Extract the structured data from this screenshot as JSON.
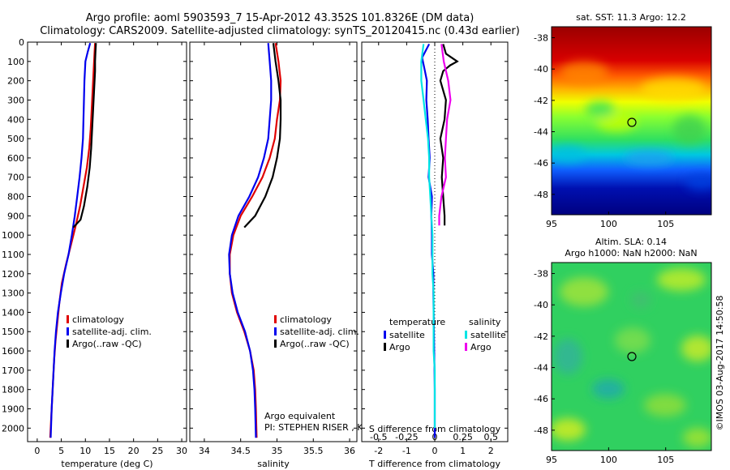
{
  "title_line1": "Argo profile: aoml 5903593_7 15-Apr-2012 43.352S 101.8326E (DM data)",
  "title_line2": "Climatology: CARS2009. Satellite-adjusted climatology: synTS_20120415.nc (0.43d earlier)",
  "watermark": "©IMOS 03-Aug-2017 14:50:58",
  "annotation_line1": "Argo equivalent",
  "annotation_line2": "PI: STEPHEN RISER , KENNETH JOHNSON",
  "colors": {
    "climatology": "#e00000",
    "satellite": "#0000ee",
    "argo": "#000000",
    "cyan": "#00e5e5",
    "magenta": "#ee00ee"
  },
  "chart_data": [
    {
      "id": "temperature",
      "type": "line",
      "xlabel": "temperature (deg C)",
      "xlim": [
        -2,
        31
      ],
      "xticks": [
        0,
        5,
        10,
        15,
        20,
        25,
        30
      ],
      "ylim": [
        0,
        2070
      ],
      "yticks": [
        0,
        100,
        200,
        300,
        400,
        500,
        600,
        700,
        800,
        900,
        1000,
        1100,
        1200,
        1300,
        1400,
        1500,
        1600,
        1700,
        1800,
        1900,
        2000
      ],
      "legend": [
        "climatology",
        "satellite-adj. clim.",
        "Argo(..raw -QC)"
      ],
      "series": [
        {
          "name": "climatology",
          "color": "#e00000",
          "points": [
            [
              12,
              5
            ],
            [
              11.9,
              50
            ],
            [
              11.8,
              100
            ],
            [
              11.7,
              150
            ],
            [
              11.5,
              250
            ],
            [
              11.3,
              350
            ],
            [
              11.1,
              450
            ],
            [
              10.8,
              550
            ],
            [
              10.3,
              650
            ],
            [
              9.6,
              750
            ],
            [
              8.9,
              850
            ],
            [
              8,
              950
            ],
            [
              7,
              1050
            ],
            [
              6,
              1150
            ],
            [
              5.1,
              1250
            ],
            [
              4.6,
              1350
            ],
            [
              4.2,
              1450
            ],
            [
              3.8,
              1550
            ],
            [
              3.5,
              1650
            ],
            [
              3.2,
              1800
            ],
            [
              2.9,
              1950
            ],
            [
              2.7,
              2050
            ]
          ]
        },
        {
          "name": "satellite-adj. clim.",
          "color": "#0000ee",
          "points": [
            [
              11,
              5
            ],
            [
              10.5,
              50
            ],
            [
              10,
              100
            ],
            [
              9.8,
              200
            ],
            [
              9.7,
              300
            ],
            [
              9.6,
              400
            ],
            [
              9.5,
              500
            ],
            [
              9.2,
              600
            ],
            [
              8.8,
              700
            ],
            [
              8.3,
              800
            ],
            [
              7.8,
              900
            ],
            [
              7.2,
              1000
            ],
            [
              6.5,
              1100
            ],
            [
              5.6,
              1200
            ],
            [
              4.9,
              1300
            ],
            [
              4.3,
              1400
            ],
            [
              3.9,
              1500
            ],
            [
              3.6,
              1600
            ],
            [
              3.3,
              1750
            ],
            [
              3,
              1900
            ],
            [
              2.8,
              2050
            ]
          ]
        },
        {
          "name": "Argo(..raw -QC)",
          "color": "#000000",
          "points": [
            [
              12.2,
              5
            ],
            [
              12.1,
              50
            ],
            [
              12,
              100
            ],
            [
              12,
              150
            ],
            [
              11.8,
              250
            ],
            [
              11.6,
              350
            ],
            [
              11.4,
              450
            ],
            [
              11.2,
              550
            ],
            [
              10.9,
              650
            ],
            [
              10.4,
              750
            ],
            [
              9.7,
              850
            ],
            [
              9,
              920
            ],
            [
              7.5,
              960
            ]
          ]
        }
      ]
    },
    {
      "id": "salinity",
      "type": "line",
      "xlabel": "salinity",
      "xlim": [
        33.8,
        36.1
      ],
      "xticks": [
        34,
        34.5,
        35,
        35.5,
        36
      ],
      "ylim": [
        0,
        2070
      ],
      "legend": [
        "climatology",
        "satellite-adj. clim.",
        "Argo(..raw -QC)"
      ],
      "series": [
        {
          "name": "climatology",
          "color": "#e00000",
          "points": [
            [
              34.98,
              5
            ],
            [
              35.02,
              100
            ],
            [
              35.05,
              200
            ],
            [
              35.04,
              300
            ],
            [
              35,
              400
            ],
            [
              34.97,
              500
            ],
            [
              34.9,
              600
            ],
            [
              34.8,
              700
            ],
            [
              34.66,
              800
            ],
            [
              34.5,
              900
            ],
            [
              34.4,
              1000
            ],
            [
              34.35,
              1100
            ],
            [
              34.35,
              1200
            ],
            [
              34.38,
              1300
            ],
            [
              34.45,
              1400
            ],
            [
              34.55,
              1500
            ],
            [
              34.63,
              1600
            ],
            [
              34.68,
              1700
            ],
            [
              34.7,
              1800
            ],
            [
              34.71,
              1900
            ],
            [
              34.72,
              2050
            ]
          ]
        },
        {
          "name": "satellite-adj. clim.",
          "color": "#0000ee",
          "points": [
            [
              34.88,
              5
            ],
            [
              34.9,
              100
            ],
            [
              34.92,
              200
            ],
            [
              34.92,
              300
            ],
            [
              34.9,
              400
            ],
            [
              34.88,
              500
            ],
            [
              34.82,
              600
            ],
            [
              34.74,
              700
            ],
            [
              34.62,
              800
            ],
            [
              34.47,
              900
            ],
            [
              34.38,
              1000
            ],
            [
              34.34,
              1100
            ],
            [
              34.35,
              1200
            ],
            [
              34.39,
              1300
            ],
            [
              34.46,
              1400
            ],
            [
              34.56,
              1500
            ],
            [
              34.63,
              1600
            ],
            [
              34.67,
              1700
            ],
            [
              34.69,
              1800
            ],
            [
              34.7,
              1900
            ],
            [
              34.71,
              2050
            ]
          ]
        },
        {
          "name": "Argo(..raw -QC)",
          "color": "#000000",
          "points": [
            [
              34.95,
              5
            ],
            [
              34.98,
              100
            ],
            [
              35.02,
              200
            ],
            [
              35.05,
              300
            ],
            [
              35.05,
              400
            ],
            [
              35.04,
              500
            ],
            [
              35,
              600
            ],
            [
              34.94,
              700
            ],
            [
              34.84,
              800
            ],
            [
              34.7,
              900
            ],
            [
              34.55,
              960
            ]
          ]
        }
      ]
    },
    {
      "id": "difference",
      "type": "line",
      "xlabel": "T difference from climatology",
      "xlabel2": "S difference from climatology",
      "xlim": [
        -2.6,
        2.6
      ],
      "xticks": [
        -2,
        -1,
        0,
        1,
        2
      ],
      "xticks2": [
        -0.5,
        -0.25,
        0,
        0.25,
        0.5
      ],
      "ylim": [
        0,
        2070
      ],
      "legend_title_left": "temperature",
      "legend_title_right": "salinity",
      "legend": [
        {
          "name": "satellite",
          "color": "#0000ee"
        },
        {
          "name": "Argo",
          "color": "#000000"
        },
        {
          "name": "satellite",
          "color": "#00e5e5"
        },
        {
          "name": "Argo",
          "color": "#ee00ee"
        }
      ],
      "series": [
        {
          "name": "T satellite",
          "color": "#0000ee",
          "points": [
            [
              -0.2,
              10
            ],
            [
              -0.45,
              80
            ],
            [
              -0.35,
              150
            ],
            [
              -0.28,
              200
            ],
            [
              -0.3,
              300
            ],
            [
              -0.25,
              400
            ],
            [
              -0.22,
              500
            ],
            [
              -0.18,
              600
            ],
            [
              -0.22,
              700
            ],
            [
              -0.1,
              800
            ],
            [
              -0.12,
              900
            ],
            [
              -0.1,
              1000
            ],
            [
              -0.1,
              1100
            ],
            [
              -0.05,
              1200
            ],
            [
              -0.05,
              1300
            ],
            [
              -0.04,
              1400
            ],
            [
              -0.03,
              1500
            ],
            [
              -0.02,
              1600
            ],
            [
              -0.01,
              1700
            ],
            [
              0,
              1800
            ],
            [
              0,
              1900
            ],
            [
              0,
              2050
            ]
          ]
        },
        {
          "name": "T Argo",
          "color": "#000000",
          "points": [
            [
              0.3,
              10
            ],
            [
              0.4,
              60
            ],
            [
              0.8,
              100
            ],
            [
              0.55,
              120
            ],
            [
              0.3,
              150
            ],
            [
              0.2,
              200
            ],
            [
              0.4,
              300
            ],
            [
              0.35,
              400
            ],
            [
              0.2,
              500
            ],
            [
              0.3,
              600
            ],
            [
              0.25,
              700
            ],
            [
              0.3,
              800
            ],
            [
              0.35,
              900
            ],
            [
              0.35,
              950
            ]
          ]
        },
        {
          "name": "S satellite",
          "color": "#00e5e5",
          "points": [
            [
              -0.1,
              10
            ],
            [
              -0.12,
              100
            ],
            [
              -0.12,
              200
            ],
            [
              -0.1,
              300
            ],
            [
              -0.08,
              400
            ],
            [
              -0.06,
              500
            ],
            [
              -0.05,
              600
            ],
            [
              -0.05,
              700
            ],
            [
              -0.04,
              800
            ],
            [
              -0.03,
              900
            ],
            [
              -0.02,
              1000
            ],
            [
              -0.02,
              1100
            ],
            [
              -0.02,
              1200
            ],
            [
              -0.01,
              1300
            ],
            [
              -0.01,
              1400
            ],
            [
              -0.01,
              1500
            ],
            [
              -0.01,
              1600
            ],
            [
              0,
              1700
            ],
            [
              0,
              1800
            ],
            [
              0,
              1900
            ],
            [
              0,
              2000
            ]
          ]
        },
        {
          "name": "S Argo",
          "color": "#ee00ee",
          "points": [
            [
              0.06,
              10
            ],
            [
              0.08,
              100
            ],
            [
              0.12,
              200
            ],
            [
              0.14,
              300
            ],
            [
              0.11,
              400
            ],
            [
              0.1,
              500
            ],
            [
              0.09,
              600
            ],
            [
              0.1,
              700
            ],
            [
              0.06,
              800
            ],
            [
              0.04,
              900
            ],
            [
              0.04,
              950
            ]
          ]
        }
      ]
    },
    {
      "id": "sst-map",
      "type": "heatmap",
      "title": "sat. SST: 11.3 Argo: 12.2",
      "xlim": [
        95,
        109
      ],
      "ylim": [
        -49.3,
        -37.3
      ],
      "xticks": [
        95,
        100,
        105
      ],
      "yticks": [
        -38,
        -40,
        -42,
        -44,
        -46,
        -48
      ],
      "marker": [
        101.83,
        -43.35
      ]
    },
    {
      "id": "sla-map",
      "type": "heatmap",
      "title_line1": "Altim. SLA: 0.14",
      "title_line2": "Argo h1000: NaN h2000: NaN",
      "xlim": [
        95,
        109
      ],
      "ylim": [
        -49.3,
        -37.3
      ],
      "xticks": [
        95,
        100,
        105
      ],
      "yticks": [
        -38,
        -40,
        -42,
        -44,
        -46,
        -48
      ],
      "marker": [
        101.83,
        -43.35
      ]
    }
  ]
}
